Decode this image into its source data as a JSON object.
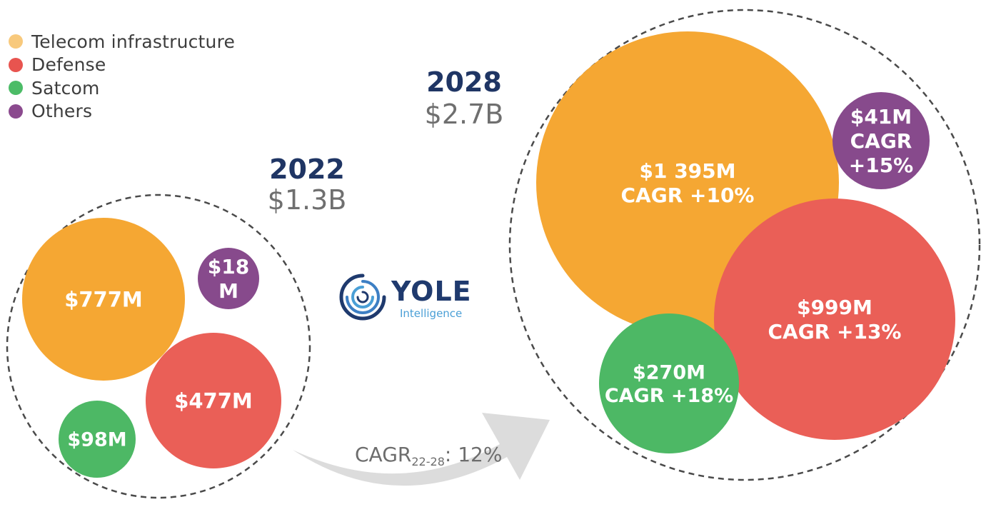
{
  "legend": [
    {
      "label": "Telecom infrastructure",
      "color": "#f8c97c"
    },
    {
      "label": "Defense",
      "color": "#e8544f"
    },
    {
      "label": "Satcom",
      "color": "#4cbc67"
    },
    {
      "label": "Others",
      "color": "#8b4a8e"
    }
  ],
  "years": {
    "y2022": {
      "year": "2022",
      "total": "$1.3B"
    },
    "y2028": {
      "year": "2028",
      "total": "$2.7B"
    }
  },
  "logo": {
    "word": "YOLE",
    "sub": "Intelligence"
  },
  "cagr": {
    "prefix": "CAGR",
    "sub": "22-28",
    "suffix": ": 12%"
  },
  "colors": {
    "telecom": "#f5a733",
    "defense": "#ea5f57",
    "satcom": "#4db865",
    "others": "#874a8c"
  },
  "chart_data": [
    {
      "type": "bubble",
      "year": "2022",
      "total": "$1.3B",
      "series": [
        {
          "name": "Telecom infrastructure",
          "value_musd": 777,
          "label": "$777M"
        },
        {
          "name": "Defense",
          "value_musd": 477,
          "label": "$477M"
        },
        {
          "name": "Satcom",
          "value_musd": 98,
          "label": "$98M"
        },
        {
          "name": "Others",
          "value_musd": 18,
          "label": "$18 M"
        }
      ]
    },
    {
      "type": "bubble",
      "year": "2028",
      "total": "$2.7B",
      "series": [
        {
          "name": "Telecom infrastructure",
          "value_musd": 1395,
          "cagr_pct": 10,
          "label": "$1 395M",
          "cagr_label": "CAGR +10%"
        },
        {
          "name": "Defense",
          "value_musd": 999,
          "cagr_pct": 13,
          "label": "$999M",
          "cagr_label": "CAGR +13%"
        },
        {
          "name": "Satcom",
          "value_musd": 270,
          "cagr_pct": 18,
          "label": "$270M",
          "cagr_label": "CAGR +18%"
        },
        {
          "name": "Others",
          "value_musd": 41,
          "cagr_pct": 15,
          "label": "$41M",
          "cagr_label": "CAGR +15%"
        }
      ]
    }
  ]
}
